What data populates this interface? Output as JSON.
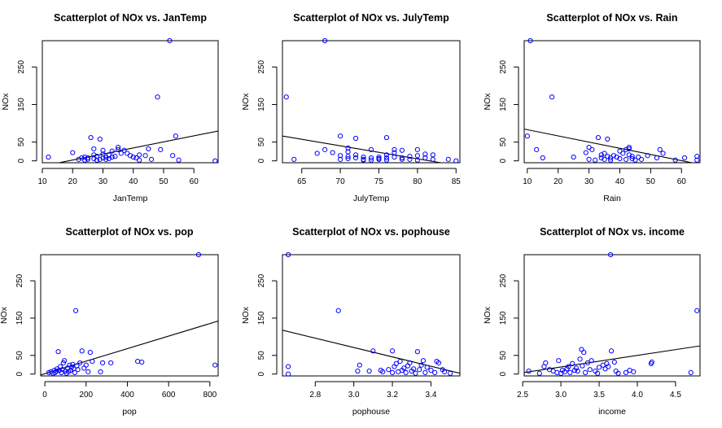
{
  "chart_data": [
    {
      "type": "scatter",
      "title": "Scatterplot of NOx vs. JanTemp",
      "xlabel": "JanTemp",
      "ylabel": "NOx",
      "xlim": [
        10,
        68
      ],
      "ylim": [
        -5,
        320
      ],
      "xticks": [
        10,
        20,
        30,
        40,
        50,
        60
      ],
      "yticks": [
        0,
        50,
        150,
        250
      ],
      "points": [
        [
          12,
          10
        ],
        [
          20,
          22
        ],
        [
          22,
          4
        ],
        [
          23,
          8
        ],
        [
          24,
          2
        ],
        [
          24,
          10
        ],
        [
          25,
          4
        ],
        [
          25,
          8
        ],
        [
          26,
          62
        ],
        [
          27,
          16
        ],
        [
          27,
          6
        ],
        [
          27,
          32
        ],
        [
          28,
          2
        ],
        [
          28,
          12
        ],
        [
          29,
          58
        ],
        [
          29,
          4
        ],
        [
          30,
          18
        ],
        [
          30,
          8
        ],
        [
          30,
          28
        ],
        [
          31,
          10
        ],
        [
          31,
          4
        ],
        [
          32,
          15
        ],
        [
          32,
          6
        ],
        [
          33,
          26
        ],
        [
          33,
          10
        ],
        [
          34,
          12
        ],
        [
          35,
          36
        ],
        [
          35,
          30
        ],
        [
          36,
          20
        ],
        [
          37,
          28
        ],
        [
          38,
          20
        ],
        [
          39,
          14
        ],
        [
          40,
          10
        ],
        [
          41,
          8
        ],
        [
          42,
          16
        ],
        [
          42,
          2
        ],
        [
          44,
          14
        ],
        [
          45,
          32
        ],
        [
          46,
          4
        ],
        [
          48,
          170
        ],
        [
          49,
          30
        ],
        [
          52,
          320
        ],
        [
          53,
          14
        ],
        [
          54,
          66
        ],
        [
          55,
          2
        ],
        [
          67,
          0
        ]
      ],
      "fit_line": {
        "intercept": -30,
        "slope": 1.61
      },
      "marker_color": "#0000ff",
      "line_color": "#000000"
    },
    {
      "type": "scatter",
      "title": "Scatterplot of NOx vs. JulyTemp",
      "xlabel": "JulyTemp",
      "ylabel": "NOx",
      "xlim": [
        62.5,
        85.5
      ],
      "ylim": [
        -5,
        320
      ],
      "xticks": [
        65,
        70,
        75,
        80,
        85
      ],
      "yticks": [
        0,
        50,
        150,
        250
      ],
      "points": [
        [
          63,
          170
        ],
        [
          64,
          4
        ],
        [
          67,
          20
        ],
        [
          68,
          320
        ],
        [
          68,
          30
        ],
        [
          69,
          22
        ],
        [
          70,
          4
        ],
        [
          70,
          66
        ],
        [
          70,
          14
        ],
        [
          71,
          6
        ],
        [
          71,
          12
        ],
        [
          71,
          24
        ],
        [
          71,
          34
        ],
        [
          72,
          60
        ],
        [
          72,
          8
        ],
        [
          72,
          16
        ],
        [
          73,
          10
        ],
        [
          73,
          2
        ],
        [
          73,
          4
        ],
        [
          74,
          30
        ],
        [
          74,
          8
        ],
        [
          74,
          2
        ],
        [
          75,
          4
        ],
        [
          75,
          6
        ],
        [
          75,
          10
        ],
        [
          76,
          62
        ],
        [
          76,
          16
        ],
        [
          76,
          8
        ],
        [
          76,
          2
        ],
        [
          77,
          30
        ],
        [
          77,
          22
        ],
        [
          77,
          10
        ],
        [
          78,
          8
        ],
        [
          78,
          4
        ],
        [
          78,
          28
        ],
        [
          79,
          4
        ],
        [
          79,
          12
        ],
        [
          80,
          14
        ],
        [
          80,
          2
        ],
        [
          80,
          30
        ],
        [
          81,
          8
        ],
        [
          81,
          18
        ],
        [
          82,
          4
        ],
        [
          82,
          16
        ],
        [
          84,
          4
        ],
        [
          85,
          0
        ]
      ],
      "fit_line": {
        "intercept": 283,
        "slope": -3.47
      },
      "marker_color": "#0000ff",
      "line_color": "#000000"
    },
    {
      "type": "scatter",
      "title": "Scatterplot of NOx vs. Rain",
      "xlabel": "Rain",
      "ylabel": "NOx",
      "xlim": [
        9,
        66
      ],
      "ylim": [
        -5,
        320
      ],
      "xticks": [
        10,
        20,
        30,
        40,
        50,
        60
      ],
      "yticks": [
        0,
        50,
        150,
        250
      ],
      "points": [
        [
          10,
          66
        ],
        [
          11,
          320
        ],
        [
          13,
          30
        ],
        [
          15,
          8
        ],
        [
          18,
          170
        ],
        [
          25,
          10
        ],
        [
          29,
          22
        ],
        [
          30,
          4
        ],
        [
          30,
          36
        ],
        [
          31,
          30
        ],
        [
          32,
          2
        ],
        [
          33,
          62
        ],
        [
          34,
          8
        ],
        [
          34,
          16
        ],
        [
          35,
          20
        ],
        [
          35,
          4
        ],
        [
          36,
          58
        ],
        [
          36,
          12
        ],
        [
          37,
          8
        ],
        [
          37,
          2
        ],
        [
          38,
          14
        ],
        [
          39,
          10
        ],
        [
          40,
          6
        ],
        [
          40,
          26
        ],
        [
          41,
          20
        ],
        [
          42,
          30
        ],
        [
          42,
          4
        ],
        [
          43,
          32
        ],
        [
          43,
          36
        ],
        [
          43,
          16
        ],
        [
          44,
          6
        ],
        [
          44,
          12
        ],
        [
          45,
          2
        ],
        [
          46,
          10
        ],
        [
          47,
          4
        ],
        [
          49,
          14
        ],
        [
          52,
          8
        ],
        [
          53,
          30
        ],
        [
          54,
          20
        ],
        [
          58,
          2
        ],
        [
          61,
          8
        ],
        [
          65,
          2
        ],
        [
          65,
          12
        ]
      ],
      "fit_line": {
        "intercept": 99.5,
        "slope": -1.65
      },
      "marker_color": "#0000ff",
      "line_color": "#000000"
    },
    {
      "type": "scatter",
      "title": "Scatterplot of NOx vs. pop",
      "xlabel": "pop",
      "ylabel": "NOx",
      "xlim": [
        -20,
        840
      ],
      "ylim": [
        -5,
        320
      ],
      "xticks": [
        0,
        200,
        400,
        600,
        800
      ],
      "yticks": [
        0,
        50,
        150,
        250
      ],
      "points": [
        [
          20,
          4
        ],
        [
          30,
          6
        ],
        [
          40,
          2
        ],
        [
          45,
          10
        ],
        [
          50,
          4
        ],
        [
          55,
          8
        ],
        [
          60,
          14
        ],
        [
          65,
          60
        ],
        [
          70,
          10
        ],
        [
          75,
          20
        ],
        [
          80,
          4
        ],
        [
          85,
          12
        ],
        [
          90,
          30
        ],
        [
          95,
          36
        ],
        [
          100,
          8
        ],
        [
          105,
          2
        ],
        [
          110,
          16
        ],
        [
          115,
          6
        ],
        [
          120,
          24
        ],
        [
          125,
          10
        ],
        [
          130,
          18
        ],
        [
          135,
          26
        ],
        [
          140,
          14
        ],
        [
          145,
          4
        ],
        [
          150,
          170
        ],
        [
          155,
          22
        ],
        [
          160,
          12
        ],
        [
          170,
          30
        ],
        [
          180,
          62
        ],
        [
          190,
          16
        ],
        [
          200,
          24
        ],
        [
          210,
          6
        ],
        [
          220,
          58
        ],
        [
          230,
          34
        ],
        [
          270,
          6
        ],
        [
          280,
          30
        ],
        [
          320,
          30
        ],
        [
          450,
          34
        ],
        [
          470,
          32
        ],
        [
          745,
          320
        ],
        [
          825,
          24
        ]
      ],
      "fit_line": {
        "intercept": 1,
        "slope": 0.168
      },
      "marker_color": "#0000ff",
      "line_color": "#000000"
    },
    {
      "type": "scatter",
      "title": "Scatterplot of NOx vs. pophouse",
      "xlabel": "pophouse",
      "ylabel": "NOx",
      "xlim": [
        2.63,
        3.55
      ],
      "ylim": [
        -5,
        320
      ],
      "xticks": [
        2.8,
        3.0,
        3.2,
        3.4
      ],
      "yticks": [
        0,
        50,
        150,
        250
      ],
      "points": [
        [
          2.66,
          320
        ],
        [
          2.66,
          20
        ],
        [
          2.66,
          0
        ],
        [
          2.92,
          170
        ],
        [
          3.02,
          8
        ],
        [
          3.03,
          24
        ],
        [
          3.08,
          8
        ],
        [
          3.1,
          62
        ],
        [
          3.14,
          10
        ],
        [
          3.15,
          6
        ],
        [
          3.18,
          12
        ],
        [
          3.2,
          4
        ],
        [
          3.2,
          62
        ],
        [
          3.21,
          20
        ],
        [
          3.22,
          28
        ],
        [
          3.23,
          6
        ],
        [
          3.24,
          34
        ],
        [
          3.25,
          10
        ],
        [
          3.26,
          16
        ],
        [
          3.27,
          4
        ],
        [
          3.28,
          22
        ],
        [
          3.29,
          30
        ],
        [
          3.3,
          8
        ],
        [
          3.31,
          14
        ],
        [
          3.32,
          2
        ],
        [
          3.33,
          60
        ],
        [
          3.34,
          12
        ],
        [
          3.35,
          24
        ],
        [
          3.36,
          36
        ],
        [
          3.37,
          4
        ],
        [
          3.38,
          18
        ],
        [
          3.4,
          10
        ],
        [
          3.42,
          4
        ],
        [
          3.43,
          34
        ],
        [
          3.44,
          30
        ],
        [
          3.46,
          12
        ],
        [
          3.47,
          6
        ],
        [
          3.5,
          2
        ]
      ],
      "fit_line": {
        "intercept": 448,
        "slope": -125.6
      },
      "marker_color": "#0000ff",
      "line_color": "#000000"
    },
    {
      "type": "scatter",
      "title": "Scatterplot of NOx vs. income",
      "xlabel": "income",
      "ylabel": "NOx",
      "xlim": [
        2.52,
        4.82
      ],
      "ylim": [
        -5,
        320
      ],
      "xticks": [
        2.5,
        3.0,
        3.5,
        4.0,
        4.5
      ],
      "yticks": [
        0,
        50,
        150,
        250
      ],
      "points": [
        [
          2.58,
          8
        ],
        [
          2.72,
          2
        ],
        [
          2.78,
          20
        ],
        [
          2.8,
          30
        ],
        [
          2.85,
          12
        ],
        [
          2.9,
          8
        ],
        [
          2.95,
          4
        ],
        [
          2.97,
          36
        ],
        [
          3.0,
          2
        ],
        [
          3.02,
          10
        ],
        [
          3.05,
          6
        ],
        [
          3.08,
          14
        ],
        [
          3.1,
          20
        ],
        [
          3.12,
          4
        ],
        [
          3.15,
          28
        ],
        [
          3.18,
          10
        ],
        [
          3.2,
          16
        ],
        [
          3.22,
          8
        ],
        [
          3.25,
          40
        ],
        [
          3.27,
          66
        ],
        [
          3.28,
          22
        ],
        [
          3.3,
          58
        ],
        [
          3.32,
          4
        ],
        [
          3.35,
          30
        ],
        [
          3.38,
          12
        ],
        [
          3.4,
          36
        ],
        [
          3.45,
          8
        ],
        [
          3.48,
          2
        ],
        [
          3.5,
          18
        ],
        [
          3.55,
          24
        ],
        [
          3.58,
          14
        ],
        [
          3.6,
          28
        ],
        [
          3.62,
          20
        ],
        [
          3.65,
          320
        ],
        [
          3.66,
          62
        ],
        [
          3.7,
          32
        ],
        [
          3.72,
          8
        ],
        [
          3.75,
          2
        ],
        [
          3.85,
          4
        ],
        [
          3.9,
          10
        ],
        [
          3.95,
          6
        ],
        [
          4.18,
          28
        ],
        [
          4.19,
          32
        ],
        [
          4.7,
          4
        ],
        [
          4.78,
          170
        ]
      ],
      "fit_line": {
        "intercept": -74,
        "slope": 31
      },
      "marker_color": "#0000ff",
      "line_color": "#000000"
    }
  ]
}
